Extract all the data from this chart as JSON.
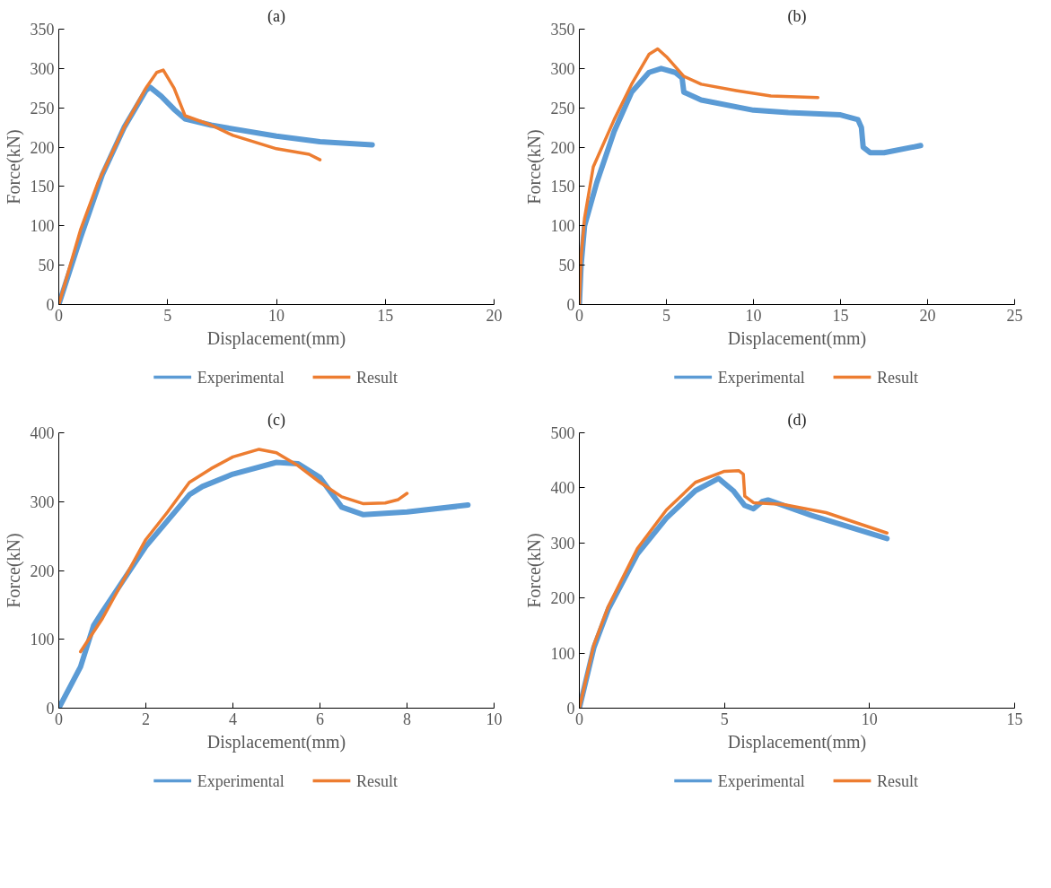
{
  "chart_data": [
    {
      "type": "line",
      "title": "(a)",
      "xlabel": "Displacement(mm)",
      "ylabel": "Force(kN)",
      "xlim": [
        0,
        20
      ],
      "ylim": [
        0,
        350
      ],
      "xticks": [
        0,
        5,
        10,
        15,
        20
      ],
      "yticks": [
        0,
        50,
        100,
        150,
        200,
        250,
        300,
        350
      ],
      "grid": false,
      "legend": "bottom",
      "marker": "none",
      "line_style": "solid",
      "series": [
        {
          "name": "Experimental",
          "color": "#5b9bd5",
          "x": [
            0,
            1,
            2,
            3,
            4,
            4.2,
            4.7,
            5.3,
            5.8,
            7,
            10,
            12,
            14.4
          ],
          "values": [
            0,
            85,
            165,
            225,
            272,
            276,
            265,
            248,
            236,
            228,
            214,
            207,
            203
          ]
        },
        {
          "name": "Result",
          "color": "#ed7d31",
          "x": [
            0,
            1,
            1.8,
            3,
            4,
            4.5,
            4.8,
            5.3,
            5.8,
            7,
            8,
            10,
            11.5,
            12
          ],
          "values": [
            0,
            95,
            155,
            225,
            275,
            295,
            298,
            275,
            240,
            228,
            215,
            198,
            191,
            184
          ]
        }
      ]
    },
    {
      "type": "line",
      "title": "(b)",
      "xlabel": "Displacement(mm)",
      "ylabel": "Force(kN)",
      "xlim": [
        0,
        25
      ],
      "ylim": [
        0,
        350
      ],
      "xticks": [
        0,
        5,
        10,
        15,
        20,
        25
      ],
      "yticks": [
        0,
        50,
        100,
        150,
        200,
        250,
        300,
        350
      ],
      "grid": false,
      "legend": "bottom",
      "marker": "none",
      "line_style": "solid",
      "series": [
        {
          "name": "Experimental",
          "color": "#5b9bd5",
          "x": [
            0,
            0.1,
            0.3,
            1,
            2,
            3,
            4,
            4.7,
            5.5,
            5.9,
            6,
            7,
            10,
            12,
            15,
            16,
            16.2,
            16.3,
            16.7,
            17.5,
            19.6
          ],
          "values": [
            0,
            50,
            100,
            155,
            220,
            270,
            295,
            300,
            295,
            288,
            270,
            260,
            247,
            244,
            241,
            235,
            225,
            200,
            193,
            193,
            202
          ]
        },
        {
          "name": "Result",
          "color": "#ed7d31",
          "x": [
            0,
            0.1,
            0.3,
            0.8,
            2,
            3,
            4,
            4.5,
            5,
            6,
            7,
            9,
            11,
            13.7
          ],
          "values": [
            0,
            60,
            110,
            175,
            235,
            280,
            318,
            325,
            315,
            290,
            280,
            272,
            265,
            263
          ]
        }
      ]
    },
    {
      "type": "line",
      "title": "(c)",
      "xlabel": "Displacement(mm)",
      "ylabel": "Force(kN)",
      "xlim": [
        0,
        10
      ],
      "ylim": [
        0,
        400
      ],
      "xticks": [
        0,
        2,
        4,
        6,
        8,
        10
      ],
      "yticks": [
        0,
        100,
        200,
        300,
        400
      ],
      "grid": false,
      "legend": "bottom",
      "marker": "none",
      "line_style": "solid",
      "series": [
        {
          "name": "Experimental",
          "color": "#5b9bd5",
          "x": [
            0,
            0.5,
            0.8,
            1,
            2,
            3,
            3.3,
            4,
            5,
            5.5,
            6,
            6.5,
            7,
            8,
            9.4
          ],
          "values": [
            0,
            60,
            120,
            140,
            235,
            310,
            322,
            340,
            357,
            355,
            335,
            292,
            281,
            285,
            295
          ]
        },
        {
          "name": "Result",
          "color": "#ed7d31",
          "x": [
            0.5,
            1,
            2,
            2.5,
            3,
            3.5,
            4,
            4.6,
            5,
            5.5,
            6,
            6.5,
            7,
            7.5,
            7.8,
            8
          ],
          "values": [
            82,
            130,
            245,
            285,
            328,
            348,
            365,
            376,
            371,
            352,
            328,
            307,
            297,
            298,
            303,
            312
          ]
        }
      ]
    },
    {
      "type": "line",
      "title": "(d)",
      "xlabel": "Displacement(mm)",
      "ylabel": "Force(kN)",
      "xlim": [
        0,
        15
      ],
      "ylim": [
        0,
        500
      ],
      "xticks": [
        0,
        5,
        10,
        15
      ],
      "yticks": [
        0,
        100,
        200,
        300,
        400,
        500
      ],
      "grid": false,
      "legend": "bottom",
      "marker": "none",
      "line_style": "solid",
      "series": [
        {
          "name": "Experimental",
          "color": "#5b9bd5",
          "x": [
            0,
            0.5,
            1,
            2,
            3,
            4,
            4.8,
            5.3,
            5.7,
            6,
            6.3,
            6.5,
            8,
            10.6
          ],
          "values": [
            0,
            110,
            180,
            280,
            345,
            395,
            417,
            395,
            368,
            362,
            375,
            378,
            350,
            308
          ]
        },
        {
          "name": "Result",
          "color": "#ed7d31",
          "x": [
            0,
            0.5,
            1,
            2,
            3,
            4,
            5,
            5.5,
            5.65,
            5.7,
            6,
            7,
            8.5,
            10.6
          ],
          "values": [
            0,
            115,
            185,
            290,
            360,
            410,
            430,
            431,
            425,
            385,
            373,
            370,
            355,
            318
          ]
        }
      ]
    }
  ]
}
